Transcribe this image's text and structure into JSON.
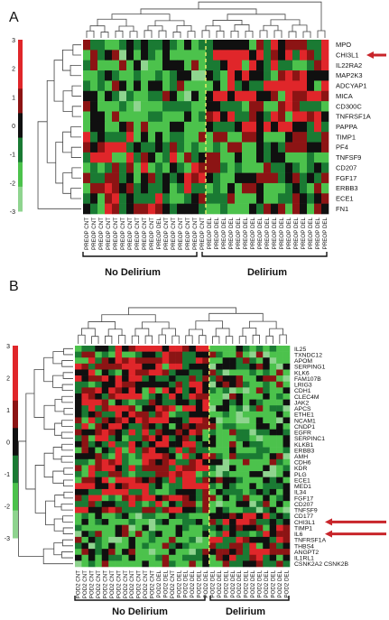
{
  "colors": {
    "red": "#e0262a",
    "dark_red": "#8c1414",
    "black": "#101010",
    "dark_green": "#1a7a33",
    "green": "#4cc24c",
    "light_green": "#8fd48f",
    "arrow": "#c8242a",
    "divider": "#f2f26a"
  },
  "panel_a": {
    "label": "A",
    "scale_ticks": [
      "3",
      "2",
      "1",
      "0",
      "-1",
      "-2",
      "-3"
    ],
    "genes": [
      "MPO",
      "CHI3L1",
      "IL22RA2",
      "MAP2K3",
      "ADCYAP1",
      "MICA",
      "CD300C",
      "TNFRSF1A",
      "PAPPA",
      "TIMP1",
      "PF4",
      "TNFSF9",
      "CD207",
      "FGF17",
      "ERBB3",
      "ECE1",
      "FN1"
    ],
    "arrow_gene": "CHI3L1",
    "columns": [
      "PREOP CNT",
      "PREOP CNT",
      "PREOP CNT",
      "PREOP CNT",
      "PREOP CNT",
      "PREOP CNT",
      "PREOP CNT",
      "PREOP CNT",
      "PREOP CNT",
      "PREOP CNT",
      "PREOP DEL",
      "PREOP CNT",
      "PREOP CNT",
      "PREOP CNT",
      "PREOP CNT",
      "PREOP CNT",
      "PREOP CNT",
      "PREOP DEL",
      "PREOP DEL",
      "PREOP DEL",
      "PREOP DEL",
      "PREOP DEL",
      "PREOP DEL",
      "PREOP DEL",
      "PREOP DEL",
      "PREOP DEL",
      "PREOP DEL",
      "PREOP DEL",
      "PREOP DEL",
      "PREOP DEL",
      "PREOP DEL",
      "PREOP DEL",
      "PREOP DEL",
      "PREOP DEL"
    ],
    "group_left": "No Delirium",
    "group_right": "Delirium"
  },
  "panel_b": {
    "label": "B",
    "scale_ticks": [
      "3",
      "2",
      "1",
      "0",
      "-1",
      "-2",
      "-3"
    ],
    "genes": [
      "IL25",
      "TXNDC12",
      "APOM",
      "SERPING1",
      "KLK6",
      "FAM107B",
      "LRIG3",
      "CDH1",
      "CLEC4M",
      "JAK2",
      "APCS",
      "ETHE1",
      "NCAM1",
      "CNDP1",
      "EGFR",
      "SERPINC1",
      "KLKB1",
      "ERBB3",
      "AMH",
      "CDH6",
      "KDR",
      "PLG",
      "ECE1",
      "MED1",
      "IL34",
      "FGF17",
      "CD207",
      "TNFSF9",
      "CD177",
      "CHI3L1",
      "TIMP1",
      "IL6",
      "TNFRSF1A",
      "THBS4",
      "ANGPT2",
      "IL1RL1",
      "CSNK2A2 CSNK2B"
    ],
    "arrow_genes": [
      "CHI3L1",
      "IL6"
    ],
    "columns": [
      "POD2 CNT",
      "POD2 CNT",
      "POD2 CNT",
      "POD2 CNT",
      "POD2 CNT",
      "POD2 CNT",
      "POD2 CNT",
      "POD2 CNT",
      "POD2 CNT",
      "POD2 CNT",
      "POD2 CNT",
      "POD2 CNT",
      "POD2 DEL",
      "POD2 DEL",
      "POD2 CNT",
      "POD2 DEL",
      "POD2 DEL",
      "POD2 DEL",
      "POD2 DEL",
      "POD2 DEL",
      "POD2 DEL",
      "POD2 DEL",
      "POD2 DEL",
      "POD2 DEL",
      "POD2 DEL",
      "POD2 DEL",
      "POD2 DEL",
      "POD2 DEL",
      "POD2 DEL",
      "POD2 DEL",
      "POD2 DEL",
      "POD2 DEL"
    ],
    "group_left": "No Delirium",
    "group_right": "Delirium"
  }
}
